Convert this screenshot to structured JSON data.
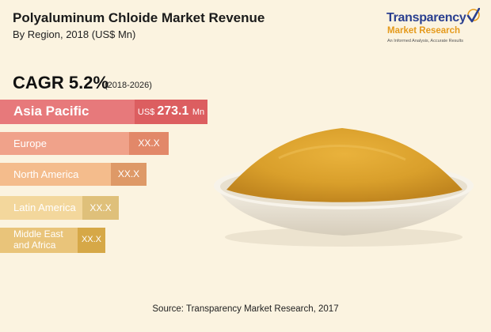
{
  "header": {
    "title": "Polyaluminum Chloide Market Revenue",
    "subtitle": "By Region, 2018 (US$ Mn)"
  },
  "logo": {
    "line1": "Transparency",
    "line2": "Market Research",
    "line3": "An Informed Analysis, Accurate Results"
  },
  "cagr": {
    "label": "CAGR 5.2%",
    "period": "(2018-2026)"
  },
  "chart_data": {
    "type": "bar",
    "title": "Polyaluminum Chloide Market Revenue",
    "subtitle": "By Region, 2018 (US$ Mn)",
    "orientation": "horizontal",
    "categories": [
      "Asia Pacific",
      "Europe",
      "North America",
      "Latin America",
      "Middle East\nand Africa"
    ],
    "value_labels": [
      "US$ 273.1 Mn",
      "XX.X",
      "XX.X",
      "XX.X",
      "XX.X"
    ],
    "values": [
      273.1,
      null,
      null,
      null,
      null
    ],
    "colors": {
      "bar_light": [
        "#e7797b",
        "#f0a28a",
        "#f4bc8c",
        "#f3d79c",
        "#e9c47a"
      ],
      "bar_dark": [
        "#dc5e60",
        "#e28869",
        "#de9967",
        "#dfc07a",
        "#d6a847"
      ]
    }
  },
  "footer": {
    "source": "Source: Transparency Market Research, 2017"
  }
}
